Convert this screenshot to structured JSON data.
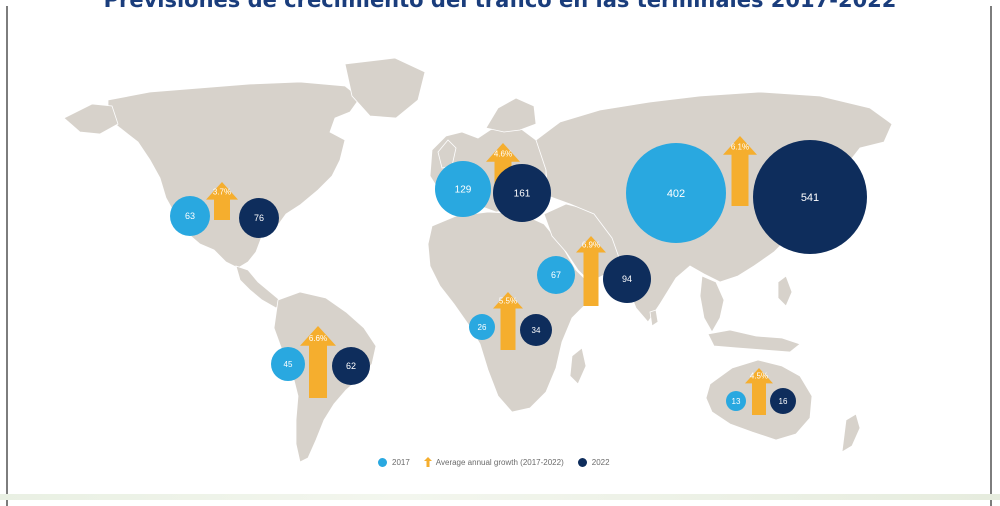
{
  "title": "Previsiones de crecimiento del tráfico en las terminales 2017-2022",
  "colors": {
    "land": "#d7d2cb",
    "land_stroke": "#ffffff",
    "value_2017": "#29a8e0",
    "value_2022": "#0e2d5c",
    "growth_arrow": "#f5ae2e"
  },
  "legend": {
    "label_2017": "2017",
    "label_growth": "Average annual growth (2017-2022)",
    "label_2022": "2022"
  },
  "regions": [
    {
      "v2017": "63",
      "growth": "3.7%",
      "v2022": "76"
    },
    {
      "v2017": "45",
      "growth": "6.6%",
      "v2022": "62"
    },
    {
      "v2017": "129",
      "growth": "4.6%",
      "v2022": "161"
    },
    {
      "v2017": "26",
      "growth": "5.5%",
      "v2022": "34"
    },
    {
      "v2017": "67",
      "growth": "6.9%",
      "v2022": "94"
    },
    {
      "v2017": "402",
      "growth": "6.1%",
      "v2022": "541"
    },
    {
      "v2017": "13",
      "growth": "4.5%",
      "v2022": "16"
    }
  ]
}
